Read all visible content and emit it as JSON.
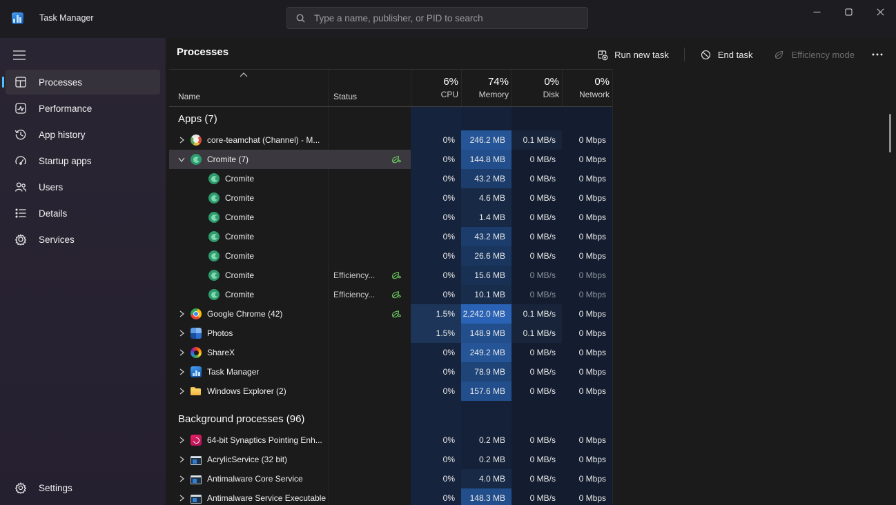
{
  "window": {
    "title": "Task Manager",
    "controls": {
      "minimize": "minimize",
      "maximize": "maximize",
      "close": "close"
    }
  },
  "search": {
    "placeholder": "Type a name, publisher, or PID to search"
  },
  "sidebar": {
    "items": [
      {
        "label": "Processes",
        "icon": "processes-icon",
        "selected": true
      },
      {
        "label": "Performance",
        "icon": "performance-icon",
        "selected": false
      },
      {
        "label": "App history",
        "icon": "app-history-icon",
        "selected": false
      },
      {
        "label": "Startup apps",
        "icon": "startup-apps-icon",
        "selected": false
      },
      {
        "label": "Users",
        "icon": "users-icon",
        "selected": false
      },
      {
        "label": "Details",
        "icon": "details-icon",
        "selected": false
      },
      {
        "label": "Services",
        "icon": "services-icon",
        "selected": false
      }
    ],
    "settings": {
      "label": "Settings",
      "icon": "settings-icon"
    }
  },
  "page": {
    "title": "Processes"
  },
  "toolbar": {
    "run_new_task": "Run new task",
    "end_task": "End task",
    "efficiency_mode": "Efficiency mode"
  },
  "table": {
    "header": {
      "name": "Name",
      "status": "Status",
      "cpu": {
        "pct": "6%",
        "label": "CPU"
      },
      "memory": {
        "pct": "74%",
        "label": "Memory"
      },
      "disk": {
        "pct": "0%",
        "label": "Disk"
      },
      "network": {
        "pct": "0%",
        "label": "Network"
      }
    },
    "rows": [
      {
        "type": "group",
        "label": "Apps (7)"
      },
      {
        "type": "app",
        "name": "core-teamchat (Channel) - M...",
        "icon": "teamchat",
        "chevron": "right",
        "status": "",
        "leaf": false,
        "cpu": "0%",
        "memory": "246.2 MB",
        "disk": "0.1 MB/s",
        "network": "0 Mbps"
      },
      {
        "type": "app",
        "name": "Cromite (7)",
        "icon": "cromite",
        "chevron": "down",
        "status": "",
        "leaf": true,
        "selected": true,
        "cpu": "0%",
        "memory": "144.8 MB",
        "disk": "0 MB/s",
        "network": "0 Mbps"
      },
      {
        "type": "child",
        "name": "Cromite",
        "icon": "cromite",
        "status": "",
        "leaf": false,
        "cpu": "0%",
        "memory": "43.2 MB",
        "disk": "0 MB/s",
        "network": "0 Mbps"
      },
      {
        "type": "child",
        "name": "Cromite",
        "icon": "cromite",
        "status": "",
        "leaf": false,
        "cpu": "0%",
        "memory": "4.6 MB",
        "disk": "0 MB/s",
        "network": "0 Mbps"
      },
      {
        "type": "child",
        "name": "Cromite",
        "icon": "cromite",
        "status": "",
        "leaf": false,
        "cpu": "0%",
        "memory": "1.4 MB",
        "disk": "0 MB/s",
        "network": "0 Mbps"
      },
      {
        "type": "child",
        "name": "Cromite",
        "icon": "cromite",
        "status": "",
        "leaf": false,
        "cpu": "0%",
        "memory": "43.2 MB",
        "disk": "0 MB/s",
        "network": "0 Mbps"
      },
      {
        "type": "child",
        "name": "Cromite",
        "icon": "cromite",
        "status": "",
        "leaf": false,
        "cpu": "0%",
        "memory": "26.6 MB",
        "disk": "0 MB/s",
        "network": "0 Mbps"
      },
      {
        "type": "child",
        "name": "Cromite",
        "icon": "cromite",
        "status": "Efficiency...",
        "leaf": true,
        "dim": true,
        "cpu": "0%",
        "memory": "15.6 MB",
        "disk": "0 MB/s",
        "network": "0 Mbps"
      },
      {
        "type": "child",
        "name": "Cromite",
        "icon": "cromite",
        "status": "Efficiency...",
        "leaf": true,
        "dim": true,
        "cpu": "0%",
        "memory": "10.1 MB",
        "disk": "0 MB/s",
        "network": "0 Mbps"
      },
      {
        "type": "app",
        "name": "Google Chrome (42)",
        "icon": "chrome",
        "chevron": "right",
        "status": "",
        "leaf": true,
        "cpu": "1.5%",
        "memory": "2,242.0 MB",
        "disk": "0.1 MB/s",
        "network": "0 Mbps"
      },
      {
        "type": "app",
        "name": "Photos",
        "icon": "photos",
        "chevron": "right",
        "status": "",
        "leaf": false,
        "cpu": "1.5%",
        "memory": "148.9 MB",
        "disk": "0.1 MB/s",
        "network": "0 Mbps"
      },
      {
        "type": "app",
        "name": "ShareX",
        "icon": "sharex",
        "chevron": "right",
        "status": "",
        "leaf": false,
        "cpu": "0%",
        "memory": "249.2 MB",
        "disk": "0 MB/s",
        "network": "0 Mbps"
      },
      {
        "type": "app",
        "name": "Task Manager",
        "icon": "taskmgr",
        "chevron": "right",
        "status": "",
        "leaf": false,
        "cpu": "0%",
        "memory": "78.9 MB",
        "disk": "0 MB/s",
        "network": "0 Mbps"
      },
      {
        "type": "app",
        "name": "Windows Explorer (2)",
        "icon": "folder",
        "chevron": "right",
        "status": "",
        "leaf": false,
        "cpu": "0%",
        "memory": "157.6 MB",
        "disk": "0 MB/s",
        "network": "0 Mbps"
      },
      {
        "type": "spacer"
      },
      {
        "type": "group",
        "label": "Background processes (96)"
      },
      {
        "type": "app",
        "name": "64-bit Synaptics Pointing Enh...",
        "icon": "synaptics",
        "chevron": "right",
        "status": "",
        "leaf": false,
        "cpu": "0%",
        "memory": "0.2 MB",
        "disk": "0 MB/s",
        "network": "0 Mbps"
      },
      {
        "type": "app",
        "name": "AcrylicService (32 bit)",
        "icon": "window",
        "chevron": "right",
        "status": "",
        "leaf": false,
        "cpu": "0%",
        "memory": "0.2 MB",
        "disk": "0 MB/s",
        "network": "0 Mbps"
      },
      {
        "type": "app",
        "name": "Antimalware Core Service",
        "icon": "window",
        "chevron": "right",
        "status": "",
        "leaf": false,
        "cpu": "0%",
        "memory": "4.0 MB",
        "disk": "0 MB/s",
        "network": "0 Mbps"
      },
      {
        "type": "app",
        "name": "Antimalware Service Executable",
        "icon": "window",
        "chevron": "right",
        "status": "",
        "leaf": false,
        "cpu": "0%",
        "memory": "148.3 MB",
        "disk": "0 MB/s",
        "network": "0 Mbps"
      }
    ]
  },
  "colors": {
    "accent": "#4cc2ff",
    "leaf_green": "#6ccb5f",
    "heat_memory": [
      "#152138",
      "#172945",
      "#182c4c",
      "#183053",
      "#1a365e",
      "#1c3d6b",
      "#1e4478",
      "#224e8c",
      "#255597",
      "#2a63b5"
    ],
    "heat_cpu_zero": "#16233c",
    "heat_cpu_active": "#1d3558",
    "heat_disk_zero": "#141d2f",
    "heat_disk_active": "#172439",
    "heat_network_zero": "#141d2f"
  }
}
